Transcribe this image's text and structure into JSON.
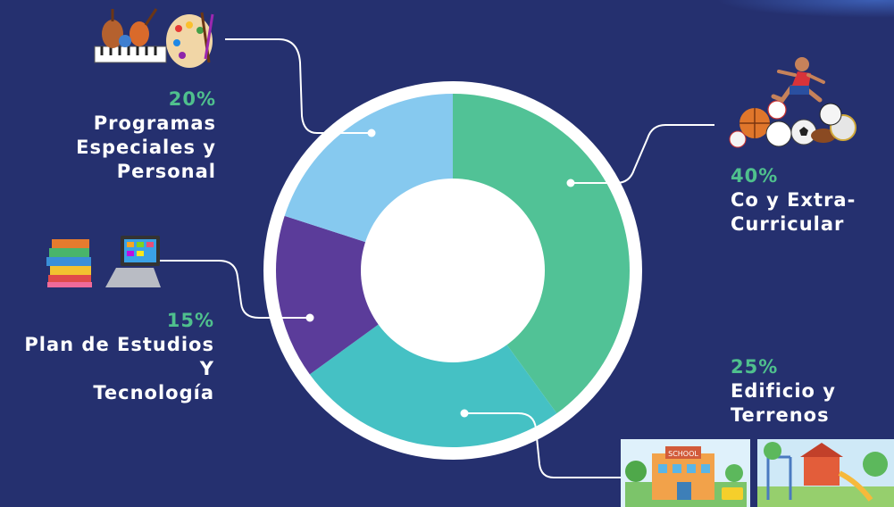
{
  "chart_data": {
    "type": "pie",
    "donut": true,
    "categories": [
      "Co y Extra-Curricular",
      "Edificio y Terrenos",
      "Plan de Estudios Y Tecnología",
      "Programas Especiales y Personal"
    ],
    "values": [
      40,
      25,
      15,
      20
    ],
    "slices": [
      {
        "pct_label": "40%",
        "line1": "Co y Extra-",
        "line2": "Curricular",
        "line3": "",
        "color": "#51c296"
      },
      {
        "pct_label": "25%",
        "line1": "Edificio y",
        "line2": "Terrenos",
        "line3": "",
        "color": "#45c1c4"
      },
      {
        "pct_label": "15%",
        "line1": "Plan de Estudios",
        "line2": "Y",
        "line3": "Tecnología",
        "color": "#5b3c9a"
      },
      {
        "pct_label": "20%",
        "line1": "Programas",
        "line2": "Especiales y",
        "line3": "Personal",
        "color": "#86c9ef"
      }
    ]
  },
  "icons": {
    "sports": "sports-balls-icon",
    "school": "school-building-icon",
    "books": "books-laptop-icon",
    "arts": "music-art-icon"
  },
  "colors": {
    "background": "#25306f",
    "percent_text": "#4fc08d",
    "label_text": "#ffffff",
    "ring": "#ffffff"
  }
}
